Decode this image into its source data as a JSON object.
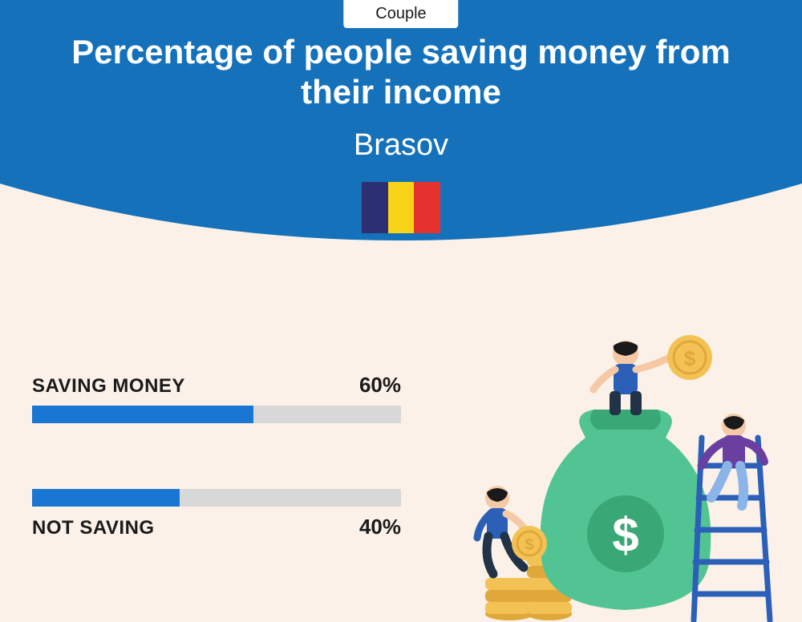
{
  "header": {
    "arc_color": "#1471ba",
    "tab_label": "Couple",
    "title": "Percentage of people saving money from their income",
    "title_fontsize": 42,
    "subtitle": "Brasov",
    "subtitle_fontsize": 38,
    "flag_colors": [
      "#2c2f72",
      "#f7d417",
      "#e5322e"
    ]
  },
  "chart": {
    "type": "bar",
    "track_color": "#d8d8d8",
    "fill_color": "#1976d2",
    "label_fontsize": 24,
    "value_fontsize": 26,
    "items": [
      {
        "label": "SAVING MONEY",
        "value_pct": 60,
        "value_text": "60%",
        "label_position": "above"
      },
      {
        "label": "NOT SAVING",
        "value_pct": 40,
        "value_text": "40%",
        "label_position": "below"
      }
    ]
  },
  "illustration": {
    "bag_color": "#52c493",
    "bag_dark": "#3aa876",
    "coin_color": "#f3c255",
    "coin_dark": "#e0a838",
    "ladder_color": "#2b5fb8",
    "person1_shirt": "#2b5fb8",
    "person1_pants": "#223247",
    "person2_shirt": "#6a3fa0",
    "person2_pants": "#8bb5e8",
    "person3_shirt": "#2b5fb8",
    "person3_pants": "#223247",
    "skin": "#f5c9a5",
    "hair": "#1a1a1a"
  },
  "background_color": "#fbf1e8"
}
